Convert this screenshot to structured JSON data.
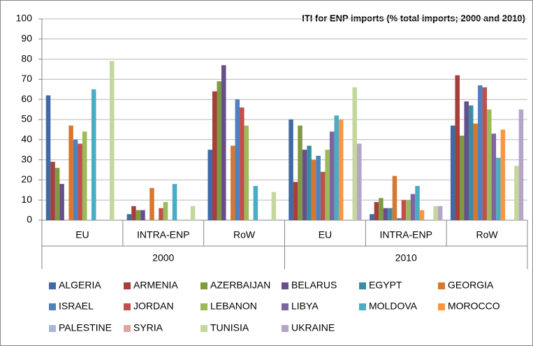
{
  "chart_data": {
    "type": "bar",
    "title": "ITI for ENP imports (% total imports; 2000 and 2010)",
    "categories": [
      "EU",
      "INTRA-ENP",
      "RoW",
      "EU",
      "INTRA-ENP",
      "RoW"
    ],
    "category_groups": [
      "2000",
      "2010"
    ],
    "ylim": [
      0,
      100
    ],
    "yticks": [
      0,
      10,
      20,
      30,
      40,
      50,
      60,
      70,
      80,
      90,
      100
    ],
    "grid": true,
    "legend": "bottom",
    "series": [
      {
        "name": "ALGERIA",
        "color": "#3f6aa6",
        "values": [
          62,
          3,
          35,
          50,
          3,
          47
        ]
      },
      {
        "name": "ARMENIA",
        "color": "#a63e3b",
        "values": [
          29,
          7,
          64,
          19,
          9,
          72
        ]
      },
      {
        "name": "AZERBAIJAN",
        "color": "#7f9a41",
        "values": [
          26,
          5,
          69,
          47,
          11,
          42
        ]
      },
      {
        "name": "BELARUS",
        "color": "#664f8a",
        "values": [
          18,
          5,
          77,
          35,
          6,
          59
        ]
      },
      {
        "name": "EGYPT",
        "color": "#3b8ca3",
        "values": [
          null,
          null,
          null,
          37,
          6,
          57
        ]
      },
      {
        "name": "GEORGIA",
        "color": "#d6782f",
        "values": [
          47,
          16,
          37,
          30,
          22,
          48
        ]
      },
      {
        "name": "ISRAEL",
        "color": "#4f81bd",
        "values": [
          40,
          null,
          60,
          32,
          1,
          67
        ]
      },
      {
        "name": "JORDAN",
        "color": "#c0504d",
        "values": [
          38,
          6,
          56,
          24,
          10,
          66
        ]
      },
      {
        "name": "LEBANON",
        "color": "#9bbb59",
        "values": [
          44,
          9,
          47,
          35,
          10,
          55
        ]
      },
      {
        "name": "LIBYA",
        "color": "#8064a2",
        "values": [
          null,
          null,
          null,
          44,
          13,
          43
        ]
      },
      {
        "name": "MOLDOVA",
        "color": "#4bacc6",
        "values": [
          65,
          18,
          17,
          52,
          17,
          31
        ]
      },
      {
        "name": "MOROCCO",
        "color": "#f79646",
        "values": [
          null,
          null,
          null,
          50,
          5,
          45
        ]
      },
      {
        "name": "PALESTINE",
        "color": "#a7b9da",
        "values": [
          null,
          null,
          null,
          null,
          null,
          null
        ]
      },
      {
        "name": "SYRIA",
        "color": "#dba7a6",
        "values": [
          null,
          null,
          null,
          null,
          null,
          null
        ]
      },
      {
        "name": "TUNISIA",
        "color": "#c4d79d",
        "values": [
          79,
          7,
          14,
          66,
          7,
          27
        ]
      },
      {
        "name": "UKRAINE",
        "color": "#b5a5c8",
        "values": [
          null,
          null,
          null,
          38,
          7,
          55
        ]
      }
    ]
  }
}
